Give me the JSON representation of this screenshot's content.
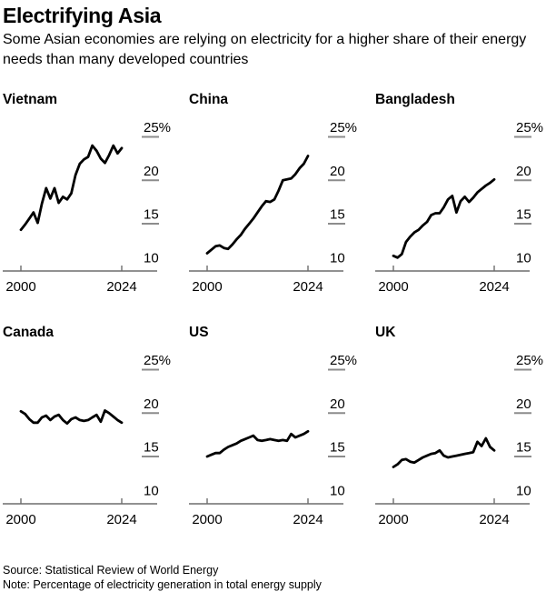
{
  "header": {
    "title": "Electrifying Asia",
    "subtitle": "Some Asian economies are relying on electricity for a higher share of their energy needs than many developed countries"
  },
  "footer": {
    "source": "Source: Statistical Review of World Energy",
    "note": "Note: Percentage of electricity generation in total energy supply"
  },
  "colors": {
    "line": "#000000",
    "axis": "#6d6d6d",
    "tick_dash": "#8c8c8c",
    "text": "#000000",
    "background": "#ffffff"
  },
  "chart_data": {
    "type": "line",
    "layout": "small-multiples 2 rows x 3 cols",
    "title": "Electrifying Asia",
    "xlabel": "",
    "ylabel": "",
    "x_range": [
      2000,
      2024
    ],
    "x_step": 1,
    "ylim": [
      8.5,
      26.5
    ],
    "y_ticks": [
      25,
      20,
      15,
      10
    ],
    "y_tick_labels": [
      "25%",
      "20",
      "15",
      "10"
    ],
    "x_tick_values": [
      2000,
      2024
    ],
    "x_tick_labels": [
      "2000",
      "2024"
    ],
    "grid": false,
    "legend": "none",
    "series": [
      {
        "name": "Vietnam",
        "values": [
          13.2,
          13.8,
          14.5,
          15.2,
          14.0,
          16.2,
          18.0,
          16.8,
          18.0,
          16.3,
          17.0,
          16.7,
          17.4,
          19.5,
          20.8,
          21.3,
          21.6,
          22.9,
          22.3,
          21.4,
          20.9,
          21.8,
          22.9,
          22.0,
          22.6
        ]
      },
      {
        "name": "China",
        "values": [
          10.5,
          10.9,
          11.3,
          11.4,
          11.1,
          11.0,
          11.5,
          12.1,
          12.6,
          13.3,
          13.9,
          14.5,
          15.2,
          15.9,
          16.5,
          16.4,
          16.7,
          17.7,
          18.9,
          19.0,
          19.1,
          19.6,
          20.3,
          20.8,
          21.7
        ]
      },
      {
        "name": "Bangladesh",
        "values": [
          10.2,
          10.0,
          10.4,
          11.8,
          12.4,
          12.9,
          13.2,
          13.7,
          14.1,
          14.9,
          15.1,
          15.1,
          15.8,
          16.7,
          17.1,
          15.2,
          16.5,
          17.0,
          16.4,
          16.9,
          17.5,
          17.9,
          18.3,
          18.6,
          19.0
        ]
      },
      {
        "name": "Canada",
        "values": [
          19.1,
          18.8,
          18.2,
          17.8,
          17.8,
          18.4,
          18.6,
          18.1,
          18.5,
          18.7,
          18.1,
          17.7,
          18.2,
          18.4,
          18.1,
          18.0,
          18.1,
          18.4,
          18.7,
          17.9,
          19.2,
          18.9,
          18.5,
          18.1,
          17.8
        ]
      },
      {
        "name": "US",
        "values": [
          13.9,
          14.1,
          14.3,
          14.3,
          14.7,
          15.0,
          15.2,
          15.4,
          15.7,
          15.9,
          16.1,
          16.3,
          15.8,
          15.7,
          15.8,
          15.9,
          15.8,
          15.7,
          15.8,
          15.7,
          16.5,
          16.1,
          16.3,
          16.5,
          16.8
        ]
      },
      {
        "name": "UK",
        "values": [
          12.7,
          13.0,
          13.5,
          13.6,
          13.3,
          13.2,
          13.5,
          13.8,
          14.0,
          14.2,
          14.3,
          14.6,
          14.0,
          13.8,
          13.9,
          14.0,
          14.1,
          14.2,
          14.3,
          14.4,
          15.6,
          15.1,
          16.0,
          15.0,
          14.6
        ]
      }
    ]
  }
}
